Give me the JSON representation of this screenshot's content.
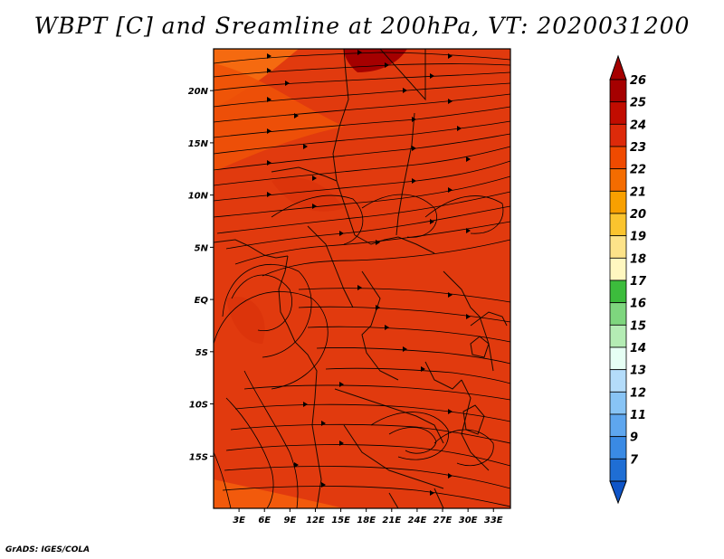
{
  "title": "WBPT [C] and Sreamline at 200hPa, VT: 2020031200",
  "credit": "GrADS: IGES/COLA",
  "map": {
    "lon_range": [
      0,
      35
    ],
    "lat_range": [
      -20,
      24
    ],
    "lon_ticks": [
      {
        "value": 3,
        "label": "3E"
      },
      {
        "value": 6,
        "label": "6E"
      },
      {
        "value": 9,
        "label": "9E"
      },
      {
        "value": 12,
        "label": "12E"
      },
      {
        "value": 15,
        "label": "15E"
      },
      {
        "value": 18,
        "label": "18E"
      },
      {
        "value": 21,
        "label": "21E"
      },
      {
        "value": 24,
        "label": "24E"
      },
      {
        "value": 27,
        "label": "27E"
      },
      {
        "value": 30,
        "label": "30E"
      },
      {
        "value": 33,
        "label": "33E"
      }
    ],
    "lat_ticks": [
      {
        "value": 20,
        "label": "20N"
      },
      {
        "value": 15,
        "label": "15N"
      },
      {
        "value": 10,
        "label": "10N"
      },
      {
        "value": 5,
        "label": "5N"
      },
      {
        "value": 0,
        "label": "EQ"
      },
      {
        "value": -5,
        "label": "5S"
      },
      {
        "value": -10,
        "label": "10S"
      },
      {
        "value": -15,
        "label": "15S"
      }
    ],
    "background_color": "#e13a0e"
  },
  "colorbar": {
    "levels": [
      {
        "label": "26",
        "color": "#a50000"
      },
      {
        "label": "25",
        "color": "#c10c00"
      },
      {
        "label": "24",
        "color": "#dd2a0a"
      },
      {
        "label": "23",
        "color": "#f04a00"
      },
      {
        "label": "22",
        "color": "#f46c00"
      },
      {
        "label": "21",
        "color": "#f8a000"
      },
      {
        "label": "20",
        "color": "#fbc42e"
      },
      {
        "label": "19",
        "color": "#fde389"
      },
      {
        "label": "18",
        "color": "#fff7c0"
      },
      {
        "label": "17",
        "color": "#3cbc3c"
      },
      {
        "label": "16",
        "color": "#7ed67e"
      },
      {
        "label": "15",
        "color": "#b4ecb4"
      },
      {
        "label": "14",
        "color": "#e6fff4"
      },
      {
        "label": "13",
        "color": "#b4dcfa"
      },
      {
        "label": "12",
        "color": "#88c4f5"
      },
      {
        "label": "11",
        "color": "#5ea6ee"
      },
      {
        "label": "9",
        "color": "#3a8ae4"
      },
      {
        "label": "7",
        "color": "#1f6ed4"
      }
    ],
    "bottom_color": "#0f55c8"
  }
}
